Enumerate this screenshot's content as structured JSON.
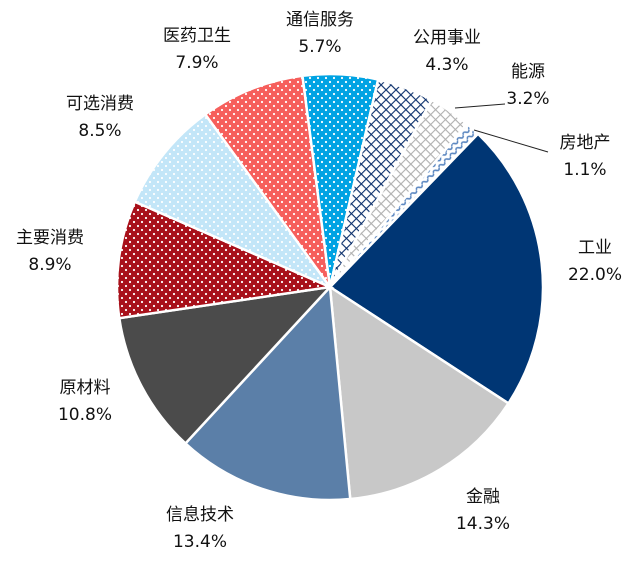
{
  "chart_data": {
    "type": "pie",
    "categories": [
      "工业",
      "金融",
      "信息技术",
      "原材料",
      "主要消费",
      "可选消费",
      "医药卫生",
      "通信服务",
      "公用事业",
      "能源",
      "房地产"
    ],
    "values": [
      22.0,
      14.3,
      13.4,
      10.8,
      8.9,
      8.5,
      7.9,
      5.7,
      4.3,
      3.2,
      1.1
    ],
    "value_labels": [
      "22.0%",
      "14.3%",
      "13.4%",
      "10.8%",
      "8.9%",
      "8.5%",
      "7.9%",
      "5.7%",
      "4.3%",
      "3.2%",
      "1.1%"
    ],
    "colors": [
      "#003674",
      "#c8c8c8",
      "#5b7fa8",
      "#4b4b4b",
      "#a8101a",
      "#c3e6f8",
      "#f65f5c",
      "#00a3e3",
      "#0b2f6b",
      "#b0b0b0",
      "#5a86c0"
    ],
    "patterns": [
      "solid",
      "solid",
      "solid",
      "solid",
      "dots",
      "dots",
      "dots",
      "dots",
      "crosshatch",
      "crosshatch",
      "wave"
    ]
  }
}
